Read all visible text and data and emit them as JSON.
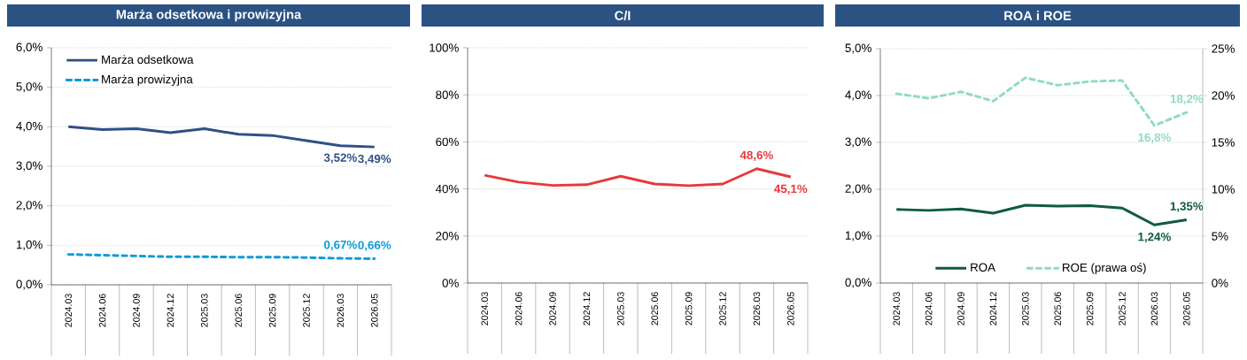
{
  "chart_data": [
    {
      "type": "line",
      "title": "Marża odsetkowa i prowizyjna",
      "categories": [
        "2024.03",
        "2024.06",
        "2024.09",
        "2024.12",
        "2025.03",
        "2025.06",
        "2025.09",
        "2025.12",
        "2026.03",
        "2026.05"
      ],
      "series": [
        {
          "name": "Marża odsetkowa",
          "color": "#2f5087",
          "line_style": "solid",
          "values": [
            4.0,
            3.93,
            3.95,
            3.85,
            3.95,
            3.81,
            3.78,
            3.65,
            3.52,
            3.49
          ],
          "value_labels": [
            null,
            null,
            null,
            null,
            null,
            null,
            null,
            null,
            "3,52%",
            "3,49%"
          ]
        },
        {
          "name": "Marża prowizyjna",
          "color": "#0f9ad6",
          "line_style": "dashed",
          "values": [
            0.77,
            0.75,
            0.73,
            0.71,
            0.71,
            0.7,
            0.7,
            0.69,
            0.67,
            0.66
          ],
          "value_labels": [
            null,
            null,
            null,
            null,
            null,
            null,
            null,
            null,
            "0,67%",
            "0,66%"
          ]
        }
      ],
      "ylim": [
        0,
        6
      ],
      "yticks": [
        {
          "value": 0,
          "label": "0,0%"
        },
        {
          "value": 1,
          "label": "1,0%"
        },
        {
          "value": 2,
          "label": "2,0%"
        },
        {
          "value": 3,
          "label": "3,0%"
        },
        {
          "value": 4,
          "label": "4,0%"
        },
        {
          "value": 5,
          "label": "5,0%"
        },
        {
          "value": 6,
          "label": "6,0%"
        }
      ],
      "grid": "y",
      "legend": "top left"
    },
    {
      "type": "line",
      "title": "C/I",
      "categories": [
        "2024.03",
        "2024.06",
        "2024.09",
        "2024.12",
        "2025.03",
        "2025.06",
        "2025.09",
        "2025.12",
        "2026.03",
        "2026.05"
      ],
      "series": [
        {
          "color": "#e8393b",
          "line_style": "solid",
          "values": [
            45.8,
            42.9,
            41.5,
            41.8,
            45.4,
            42.1,
            41.4,
            42.1,
            48.6,
            45.1
          ],
          "value_labels": [
            null,
            null,
            null,
            null,
            null,
            null,
            null,
            null,
            "48,6%",
            "45,1%"
          ]
        }
      ],
      "ylim": [
        0,
        100
      ],
      "yticks": [
        {
          "value": 0,
          "label": "0%"
        },
        {
          "value": 20,
          "label": "20%"
        },
        {
          "value": 40,
          "label": "40%"
        },
        {
          "value": 60,
          "label": "60%"
        },
        {
          "value": 80,
          "label": "80%"
        },
        {
          "value": 100,
          "label": "100%"
        }
      ],
      "grid": "y"
    },
    {
      "type": "line",
      "title": "ROA i ROE",
      "categories": [
        "2024.03",
        "2024.06",
        "2024.09",
        "2024.12",
        "2025.03",
        "2025.06",
        "2025.09",
        "2025.12",
        "2026.03",
        "2026.05"
      ],
      "series": [
        {
          "name": "ROA",
          "color": "#0f5a45",
          "line_style": "solid",
          "values": [
            1.57,
            1.55,
            1.58,
            1.49,
            1.66,
            1.64,
            1.65,
            1.6,
            1.24,
            1.35
          ],
          "value_labels": [
            null,
            null,
            null,
            null,
            null,
            null,
            null,
            null,
            "1,24%",
            "1,35%"
          ]
        },
        {
          "name": "ROE (prawa oś)",
          "color": "#8fdcbf",
          "line_style": "dashed",
          "axis": "y2",
          "values": [
            20.2,
            19.7,
            20.4,
            19.4,
            21.9,
            21.1,
            21.5,
            21.6,
            16.8,
            18.2
          ],
          "value_labels": [
            null,
            null,
            null,
            null,
            null,
            null,
            null,
            null,
            "16,8%",
            "18,2%"
          ]
        }
      ],
      "ylim": [
        0,
        5
      ],
      "yticks": [
        {
          "value": 0,
          "label": "0,0%"
        },
        {
          "value": 1,
          "label": "1,0%"
        },
        {
          "value": 2,
          "label": "2,0%"
        },
        {
          "value": 3,
          "label": "3,0%"
        },
        {
          "value": 4,
          "label": "4,0%"
        },
        {
          "value": 5,
          "label": "5,0%"
        }
      ],
      "y2lim": [
        0,
        25
      ],
      "y2ticks": [
        {
          "value": 0,
          "label": "0%"
        },
        {
          "value": 5,
          "label": "5%"
        },
        {
          "value": 10,
          "label": "10%"
        },
        {
          "value": 15,
          "label": "15%"
        },
        {
          "value": 20,
          "label": "20%"
        },
        {
          "value": 25,
          "label": "25%"
        }
      ],
      "grid": "y",
      "legend": "bottom"
    }
  ]
}
